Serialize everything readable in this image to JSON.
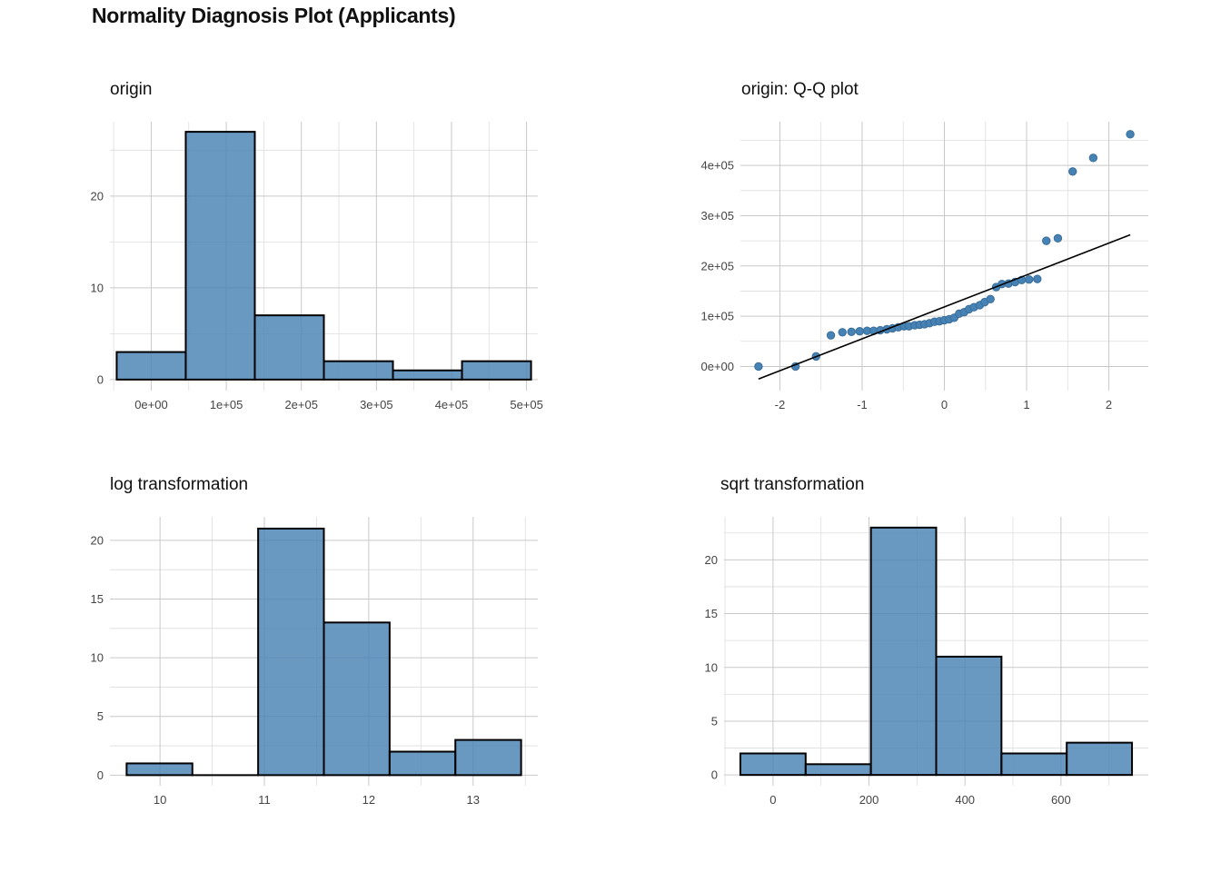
{
  "title": "Normality Diagnosis Plot (Applicants)",
  "colors": {
    "bar_fill": "#4b83b4",
    "bar_outline": "#000000",
    "point": "#4682b4",
    "grid": "#c9c9c9",
    "line": "#000000"
  },
  "chart_data": [
    {
      "id": "origin",
      "type": "bar",
      "title": "origin",
      "xlabel": "",
      "ylabel": "",
      "bins": [
        [
          -46000,
          46000
        ],
        [
          46000,
          138000
        ],
        [
          138000,
          230000
        ],
        [
          230000,
          322000
        ],
        [
          322000,
          414000
        ],
        [
          414000,
          506000
        ]
      ],
      "values": [
        3,
        27,
        7,
        2,
        1,
        2
      ],
      "xlim": [
        -55000,
        515000
      ],
      "ylim": [
        -1.2,
        28.1
      ],
      "xticks": [
        0,
        100000,
        200000,
        300000,
        400000,
        500000
      ],
      "xtick_labels": [
        "0e+00",
        "1e+05",
        "2e+05",
        "3e+05",
        "4e+05",
        "5e+05"
      ],
      "yticks": [
        0,
        10,
        20
      ],
      "ytick_labels": [
        "0",
        "10",
        "20"
      ],
      "grid": true
    },
    {
      "id": "qq",
      "type": "scatter",
      "title": "origin: Q-Q plot",
      "xlabel": "",
      "ylabel": "",
      "x": [
        -2.26,
        -1.81,
        -1.56,
        -1.38,
        -1.24,
        -1.13,
        -1.03,
        -0.94,
        -0.86,
        -0.78,
        -0.7,
        -0.63,
        -0.56,
        -0.49,
        -0.43,
        -0.36,
        -0.3,
        -0.24,
        -0.18,
        -0.12,
        -0.06,
        0.0,
        0.06,
        0.12,
        0.18,
        0.24,
        0.3,
        0.36,
        0.43,
        0.49,
        0.56,
        0.63,
        0.7,
        0.78,
        0.86,
        0.94,
        1.03,
        1.13,
        1.24,
        1.38,
        1.56,
        1.81,
        2.26
      ],
      "y": [
        0,
        0,
        20000,
        62000,
        68000,
        69000,
        70000,
        71000,
        71000,
        72000,
        74000,
        76000,
        78000,
        80000,
        80000,
        82000,
        83000,
        84000,
        86000,
        89000,
        90000,
        92000,
        94000,
        97000,
        105000,
        108000,
        114000,
        118000,
        122000,
        128000,
        134000,
        158000,
        164000,
        165000,
        168000,
        172000,
        173000,
        174000,
        250000,
        255000,
        388000,
        415000,
        462000
      ],
      "line": {
        "x": [
          -2.26,
          2.26
        ],
        "y": [
          -25000,
          262000
        ]
      },
      "xlim": [
        -2.48,
        2.48
      ],
      "ylim": [
        -48000,
        487000
      ],
      "xticks": [
        -2,
        -1,
        0,
        1,
        2
      ],
      "xtick_labels": [
        "-2",
        "-1",
        "0",
        "1",
        "2"
      ],
      "yticks": [
        0,
        100000,
        200000,
        300000,
        400000
      ],
      "ytick_labels": [
        "0e+00",
        "1e+05",
        "2e+05",
        "3e+05",
        "4e+05"
      ],
      "grid": true
    },
    {
      "id": "log",
      "type": "bar",
      "title": "log transformation",
      "xlabel": "",
      "ylabel": "",
      "bins": [
        [
          9.68,
          10.31
        ],
        [
          10.31,
          10.94
        ],
        [
          10.94,
          11.57
        ],
        [
          11.57,
          12.2
        ],
        [
          12.2,
          12.83
        ],
        [
          12.83,
          13.46
        ]
      ],
      "values": [
        1,
        0,
        21,
        13,
        2,
        3
      ],
      "xlim": [
        9.52,
        13.62
      ],
      "ylim": [
        -0.9,
        22.0
      ],
      "xticks": [
        10,
        11,
        12,
        13
      ],
      "xtick_labels": [
        "10",
        "11",
        "12",
        "13"
      ],
      "yticks": [
        0,
        5,
        10,
        15,
        20
      ],
      "ytick_labels": [
        "0",
        "5",
        "10",
        "15",
        "20"
      ],
      "grid": true
    },
    {
      "id": "sqrt",
      "type": "bar",
      "title": "sqrt transformation",
      "xlabel": "",
      "ylabel": "",
      "bins": [
        [
          -68,
          68
        ],
        [
          68,
          204
        ],
        [
          204,
          340
        ],
        [
          340,
          476
        ],
        [
          476,
          612
        ],
        [
          612,
          748
        ]
      ],
      "values": [
        2,
        1,
        23,
        11,
        2,
        3
      ],
      "xlim": [
        -102,
        782
      ],
      "ylim": [
        -1.0,
        24.0
      ],
      "xticks": [
        0,
        200,
        400,
        600
      ],
      "xtick_labels": [
        "0",
        "200",
        "400",
        "600"
      ],
      "yticks": [
        0,
        5,
        10,
        15,
        20
      ],
      "ytick_labels": [
        "0",
        "5",
        "10",
        "15",
        "20"
      ],
      "grid": true
    }
  ]
}
